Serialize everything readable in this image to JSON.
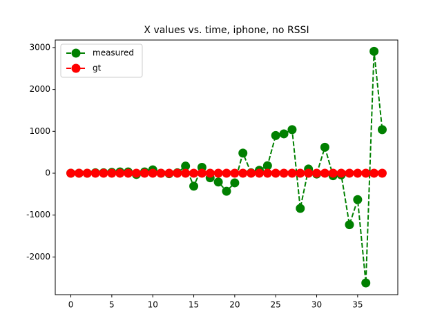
{
  "chart_data": {
    "type": "line",
    "title": "X values vs. time, iphone, no RSSI",
    "x": [
      0,
      1,
      2,
      3,
      4,
      5,
      6,
      7,
      8,
      9,
      10,
      11,
      12,
      13,
      14,
      15,
      16,
      17,
      18,
      19,
      20,
      21,
      22,
      23,
      24,
      25,
      26,
      27,
      28,
      29,
      30,
      31,
      32,
      33,
      34,
      35,
      36,
      37,
      38
    ],
    "series": [
      {
        "name": "measured",
        "color": "#008000",
        "linestyle": "dashed",
        "values": [
          0,
          0,
          0,
          10,
          10,
          20,
          30,
          30,
          -30,
          30,
          80,
          0,
          -10,
          10,
          170,
          -310,
          140,
          -110,
          -210,
          -430,
          -230,
          480,
          10,
          70,
          180,
          900,
          940,
          1040,
          -840,
          100,
          -20,
          620,
          -60,
          -40,
          -1230,
          -630,
          -2620,
          2910,
          1040
        ]
      },
      {
        "name": "gt",
        "color": "#ff0000",
        "linestyle": "dashed",
        "values": [
          0,
          0,
          0,
          0,
          0,
          0,
          0,
          0,
          0,
          0,
          0,
          0,
          0,
          0,
          0,
          0,
          0,
          0,
          0,
          0,
          0,
          0,
          0,
          0,
          0,
          0,
          0,
          0,
          0,
          0,
          0,
          0,
          0,
          0,
          0,
          0,
          0,
          0,
          0
        ]
      }
    ],
    "xlim": [
      -1.9,
      39.9
    ],
    "xticks": [
      0,
      5,
      10,
      15,
      20,
      25,
      30,
      35
    ],
    "ylim": [
      -2900,
      3180
    ],
    "yticks": [
      -2000,
      -1000,
      0,
      1000,
      2000,
      3000
    ],
    "legend": "upper left"
  }
}
